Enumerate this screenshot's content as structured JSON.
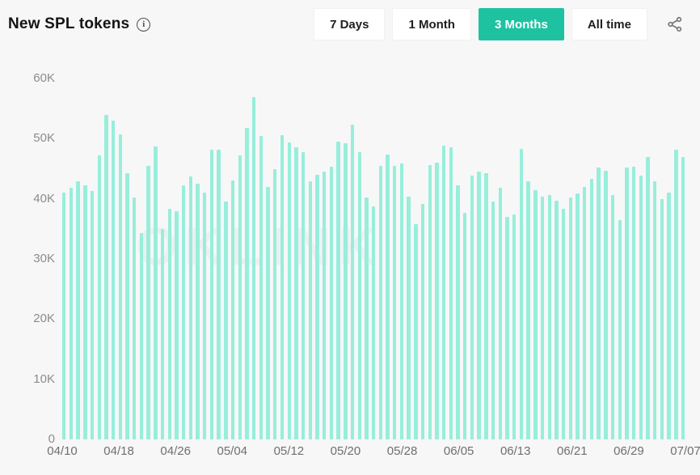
{
  "header": {
    "title": "New SPL tokens",
    "info_icon": "info-circle",
    "share_icon": "share-nodes"
  },
  "time_range": {
    "options": [
      {
        "label": "7 Days",
        "active": false
      },
      {
        "label": "1 Month",
        "active": false
      },
      {
        "label": "3 Months",
        "active": true
      },
      {
        "label": "All time",
        "active": false
      }
    ]
  },
  "watermark": "OKLINK",
  "colors": {
    "accent": "#1EC2A1",
    "bar": "#97EEDB",
    "background": "#F7F7F8",
    "button_bg": "#FFFFFF",
    "title_text": "#141414",
    "y_axis_text": "#8C8C8C",
    "x_axis_text": "#6F6F6F"
  },
  "chart_data": {
    "type": "bar",
    "title": "New SPL tokens",
    "xlabel": "",
    "ylabel": "",
    "ylim": [
      0,
      60000
    ],
    "grid": false,
    "legend": null,
    "y_ticks": [
      0,
      10000,
      20000,
      30000,
      40000,
      50000,
      60000
    ],
    "y_tick_labels": [
      "0",
      "10K",
      "20K",
      "30K",
      "40K",
      "50K",
      "60K"
    ],
    "x_tick_every": 8,
    "x_tick_labels": [
      "04/10",
      "04/18",
      "04/26",
      "05/04",
      "05/12",
      "05/20",
      "05/28",
      "06/05",
      "06/13",
      "06/21",
      "06/29",
      "07/07"
    ],
    "x": [
      "04/10",
      "04/11",
      "04/12",
      "04/13",
      "04/14",
      "04/15",
      "04/16",
      "04/17",
      "04/18",
      "04/19",
      "04/20",
      "04/21",
      "04/22",
      "04/23",
      "04/24",
      "04/25",
      "04/26",
      "04/27",
      "04/28",
      "04/29",
      "04/30",
      "05/01",
      "05/02",
      "05/03",
      "05/04",
      "05/05",
      "05/06",
      "05/07",
      "05/08",
      "05/09",
      "05/10",
      "05/11",
      "05/12",
      "05/13",
      "05/14",
      "05/15",
      "05/16",
      "05/17",
      "05/18",
      "05/19",
      "05/20",
      "05/21",
      "05/22",
      "05/23",
      "05/24",
      "05/25",
      "05/26",
      "05/27",
      "05/28",
      "05/29",
      "05/30",
      "05/31",
      "06/01",
      "06/02",
      "06/03",
      "06/04",
      "06/05",
      "06/06",
      "06/07",
      "06/08",
      "06/09",
      "06/10",
      "06/11",
      "06/12",
      "06/13",
      "06/14",
      "06/15",
      "06/16",
      "06/17",
      "06/18",
      "06/19",
      "06/20",
      "06/21",
      "06/22",
      "06/23",
      "06/24",
      "06/25",
      "06/26",
      "06/27",
      "06/28",
      "06/29",
      "06/30",
      "07/01",
      "07/02",
      "07/03",
      "07/04",
      "07/05",
      "07/06",
      "07/07"
    ],
    "values": [
      41100,
      41800,
      42900,
      42200,
      41300,
      47200,
      54000,
      53000,
      50700,
      44200,
      40200,
      34300,
      45500,
      48700,
      35000,
      38400,
      38000,
      42300,
      43700,
      42500,
      41000,
      48200,
      48100,
      39500,
      43000,
      47200,
      51800,
      56900,
      50400,
      42000,
      44900,
      50600,
      49400,
      48500,
      47800,
      42900,
      44000,
      44500,
      45300,
      49500,
      49300,
      52300,
      47800,
      40200,
      38800,
      45500,
      47300,
      45500,
      45900,
      40400,
      35800,
      39200,
      45600,
      46000,
      48900,
      48600,
      42300,
      37700,
      43800,
      44500,
      44200,
      39500,
      41800,
      37000,
      37400,
      48300,
      42900,
      41500,
      40400,
      40600,
      39700,
      38400,
      40200,
      40900,
      42000,
      43300,
      45200,
      44700,
      40600,
      36500,
      45200,
      45300,
      43800,
      46900,
      42900,
      39900,
      41100,
      48200,
      46900
    ]
  }
}
